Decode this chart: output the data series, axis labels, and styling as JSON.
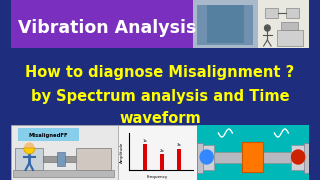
{
  "bg_color": "#1e2d7d",
  "title_box_color": "#7b2fbe",
  "title_text": "Vibration Analysis",
  "title_text_color": "#ffffff",
  "main_line1": "How to diagnose Misalignment ?",
  "main_line2": "by Spectrum analysis and Time",
  "main_line3": "waveform",
  "main_text_color": "#ffff00",
  "main_fontsize": 10.5,
  "title_fontsize": 12.5,
  "spectrum_bar_color": "#dd0000",
  "spectrum_bg": "#f5f5f5",
  "left_panel_color": "#e8e8e8",
  "right_panel_color": "#00b8b8",
  "photo_bg": "#aab8cc",
  "schematic_bg": "#e8e8e0"
}
